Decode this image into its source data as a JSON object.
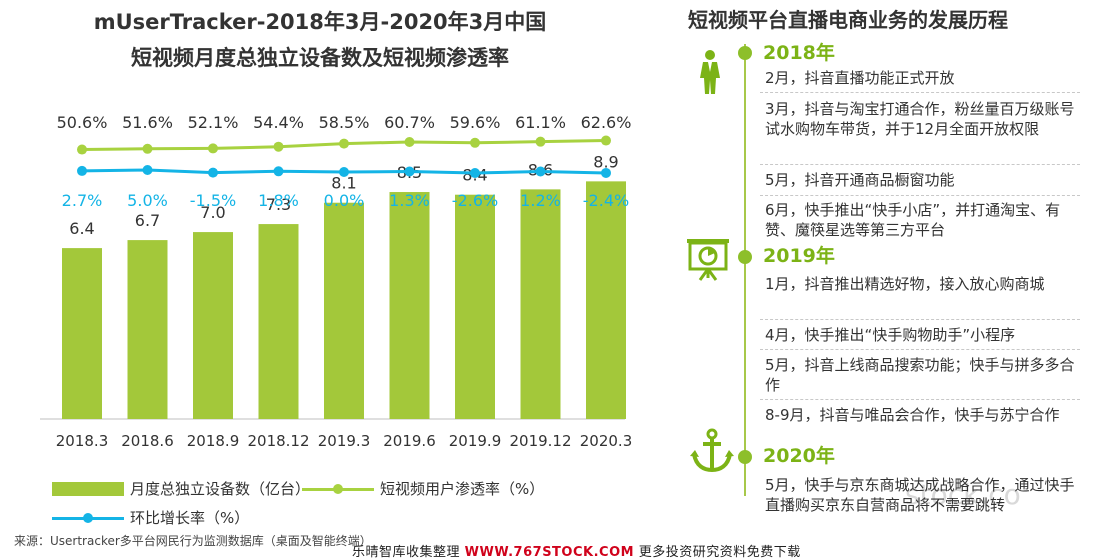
{
  "chart_data": {
    "type": "bar",
    "title_line1": "mUserTracker-2018年3月-2020年3月中国",
    "title_line2": "短视频月度总独立设备数及短视频渗透率",
    "categories": [
      "2018.3",
      "2018.6",
      "2018.9",
      "2018.12",
      "2019.3",
      "2019.6",
      "2019.9",
      "2019.12",
      "2020.3"
    ],
    "series": [
      {
        "name": "月度总独立设备数（亿台）",
        "kind": "bar",
        "color": "#a3c83a",
        "values": [
          6.4,
          6.7,
          7.0,
          7.3,
          8.1,
          8.5,
          8.4,
          8.6,
          8.9
        ],
        "labels": [
          "6.4",
          "6.7",
          "7.0",
          "7.3",
          "8.1",
          "8.5",
          "8.4",
          "8.6",
          "8.9"
        ]
      },
      {
        "name": "短视频用户渗透率（%）",
        "kind": "line",
        "color": "#a8d240",
        "values": [
          50.6,
          51.6,
          52.1,
          54.4,
          58.5,
          60.7,
          59.6,
          61.1,
          62.6
        ],
        "labels": [
          "50.6%",
          "51.6%",
          "52.1%",
          "54.4%",
          "58.5%",
          "60.7%",
          "59.6%",
          "61.1%",
          "62.6%"
        ]
      },
      {
        "name": "环比增长率（%）",
        "kind": "line",
        "color": "#14b4e6",
        "values": [
          2.7,
          5.0,
          -1.5,
          1.8,
          0.0,
          1.3,
          -2.6,
          1.2,
          -2.4
        ],
        "labels": [
          "2.7%",
          "5.0%",
          "-1.5%",
          "1.8%",
          "0.0%",
          "1.3%",
          "-2.6%",
          "1.2%",
          "-2.4%"
        ]
      }
    ],
    "bar_ylim": [
      0,
      9.4
    ],
    "legend_position": "bottom-left"
  },
  "source_text": "来源：Usertracker多平台网民行为监测数据库（桌面及智能终端）",
  "footer_text": "乐晴智库收集整理",
  "footer_site": "WWW.767STOCK.COM",
  "footer_tail": "更多投资研究资料免费下载",
  "watermark": "stock.co",
  "timeline": {
    "title": "短视频平台直播电商业务的发展历程",
    "years": [
      {
        "year": "2018年",
        "icon": "person-icon",
        "events": [
          "2月，抖音直播功能正式开放",
          "3月，抖音与淘宝打通合作，粉丝量百万级账号试水购物车带货，并于12月全面开放权限",
          "5月，抖音开通商品橱窗功能",
          "6月，快手推出“快手小店”，并打通淘宝、有赞、魔筷星选等第三方平台"
        ]
      },
      {
        "year": "2019年",
        "icon": "presentation-chart-icon",
        "events": [
          "1月，抖音推出精选好物，接入放心购商城",
          "4月，快手推出“快手购物助手”小程序",
          "5月，抖音上线商品搜索功能；快手与拼多多合作",
          "8-9月，抖音与唯品会合作，快手与苏宁合作"
        ]
      },
      {
        "year": "2020年",
        "icon": "anchor-icon",
        "events": [
          "5月，快手与京东商城达成战略合作，通过快手直播购买京东自营商品将不需要跳转"
        ]
      }
    ]
  }
}
